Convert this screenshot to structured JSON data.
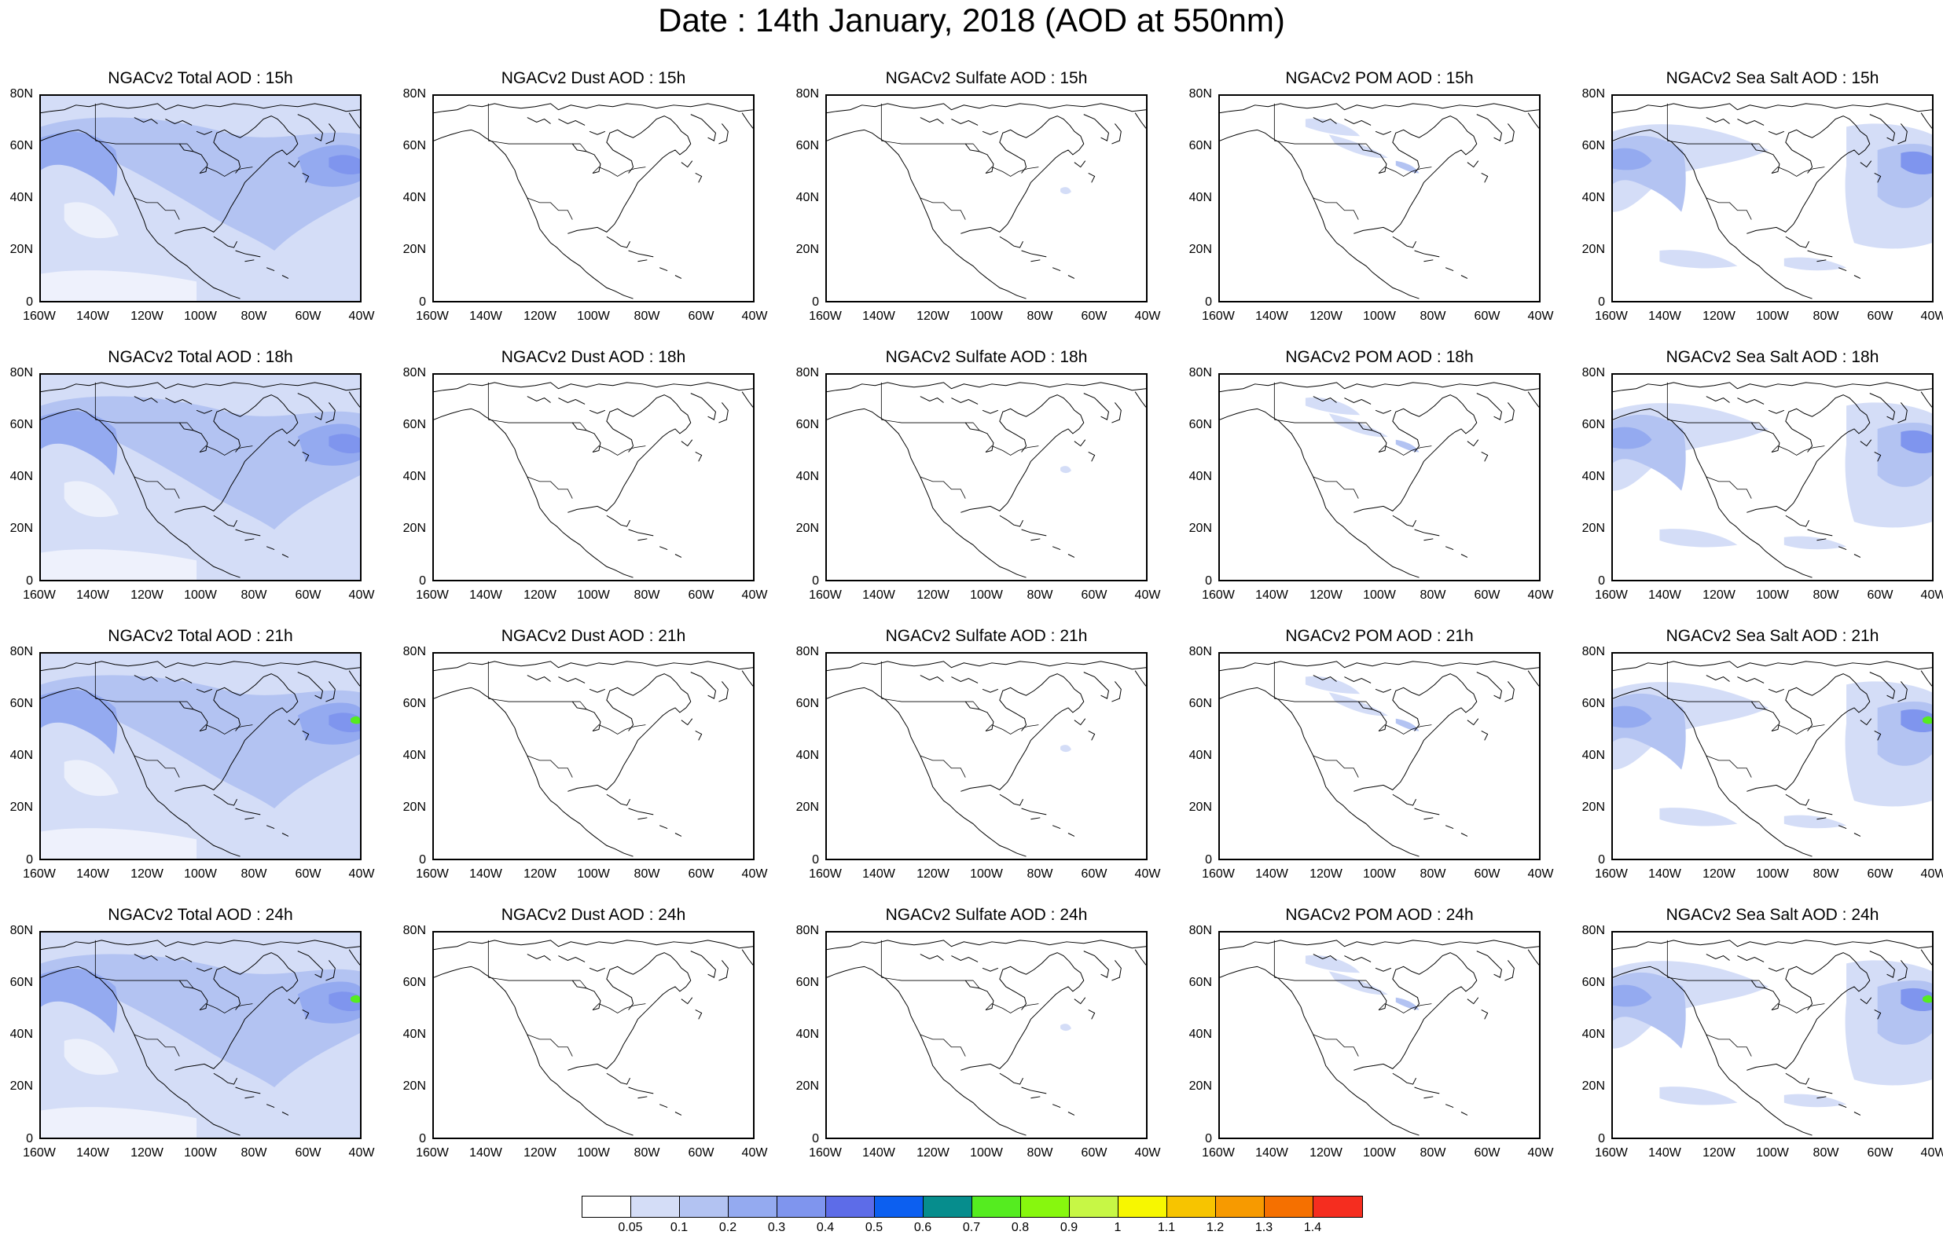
{
  "page_title": "Date : 14th January, 2018 (AOD at 550nm)",
  "lat_ticks": [
    "80N",
    "60N",
    "40N",
    "20N",
    "0"
  ],
  "lon_ticks": [
    "160W",
    "140W",
    "120W",
    "100W",
    "80W",
    "60W",
    "40W"
  ],
  "panels": [
    {
      "title": "NGACv2 Total AOD : 15h",
      "field": "total",
      "hour": 15
    },
    {
      "title": "NGACv2 Dust AOD : 15h",
      "field": "dust",
      "hour": 15
    },
    {
      "title": "NGACv2 Sulfate AOD : 15h",
      "field": "sulfate",
      "hour": 15
    },
    {
      "title": "NGACv2 POM AOD : 15h",
      "field": "pom",
      "hour": 15
    },
    {
      "title": "NGACv2 Sea Salt AOD : 15h",
      "field": "seasalt",
      "hour": 15
    },
    {
      "title": "NGACv2 Total AOD : 18h",
      "field": "total",
      "hour": 18
    },
    {
      "title": "NGACv2 Dust AOD : 18h",
      "field": "dust",
      "hour": 18
    },
    {
      "title": "NGACv2 Sulfate AOD : 18h",
      "field": "sulfate",
      "hour": 18
    },
    {
      "title": "NGACv2 POM AOD : 18h",
      "field": "pom",
      "hour": 18
    },
    {
      "title": "NGACv2 Sea Salt AOD : 18h",
      "field": "seasalt",
      "hour": 18
    },
    {
      "title": "NGACv2 Total AOD : 21h",
      "field": "total",
      "hour": 21
    },
    {
      "title": "NGACv2 Dust AOD : 21h",
      "field": "dust",
      "hour": 21
    },
    {
      "title": "NGACv2 Sulfate AOD : 21h",
      "field": "sulfate",
      "hour": 21
    },
    {
      "title": "NGACv2 POM AOD : 21h",
      "field": "pom",
      "hour": 21
    },
    {
      "title": "NGACv2 Sea Salt AOD : 21h",
      "field": "seasalt",
      "hour": 21
    },
    {
      "title": "NGACv2 Total AOD : 24h",
      "field": "total",
      "hour": 24
    },
    {
      "title": "NGACv2 Dust AOD : 24h",
      "field": "dust",
      "hour": 24
    },
    {
      "title": "NGACv2 Sulfate AOD : 24h",
      "field": "sulfate",
      "hour": 24
    },
    {
      "title": "NGACv2 POM AOD : 24h",
      "field": "pom",
      "hour": 24
    },
    {
      "title": "NGACv2 Sea Salt  AOD : 24h",
      "field": "seasalt",
      "hour": 24
    }
  ],
  "colorbar": {
    "labels": [
      "0.05",
      "0.1",
      "0.2",
      "0.3",
      "0.4",
      "0.5",
      "0.6",
      "0.7",
      "0.8",
      "0.9",
      "1",
      "1.1",
      "1.2",
      "1.3",
      "1.4"
    ],
    "colors": [
      "#ffffff",
      "#d4ddf7",
      "#b3c3f2",
      "#94aaf0",
      "#7f95ee",
      "#5d6ce8",
      "#0c5ff0",
      "#068d8d",
      "#55ec20",
      "#87f70e",
      "#c7f745",
      "#f7f700",
      "#f7c400",
      "#f79a00",
      "#f57000",
      "#f52d1f"
    ]
  },
  "map_colors": {
    "land_outline": "#000000",
    "aod_light": "#d4ddf7",
    "aod_mid": "#b3c3f2",
    "aod_high": "#94aaf0",
    "aod_peak": "#7f95ee",
    "aod_max": "#5d6ce8",
    "aod_green": "#55ec20"
  }
}
